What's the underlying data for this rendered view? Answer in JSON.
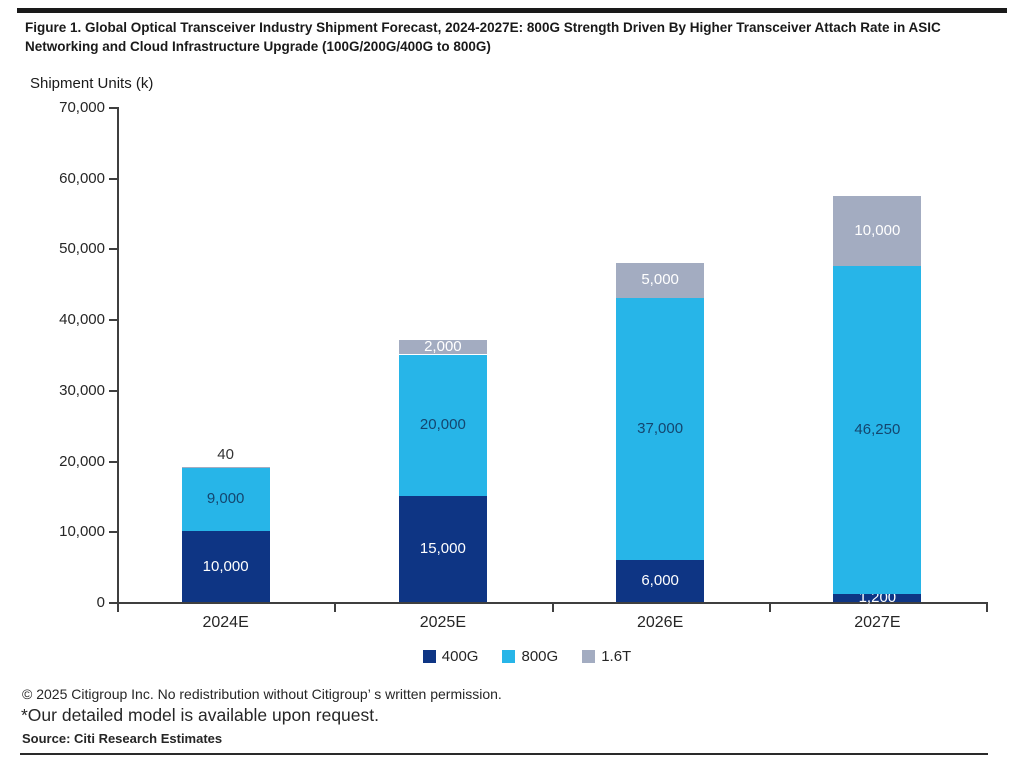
{
  "figure": {
    "title": "Figure 1. Global Optical Transceiver Industry Shipment Forecast, 2024-2027E: 800G Strength Driven By Higher Transceiver Attach Rate in ASIC Networking and Cloud Infrastructure Upgrade (100G/200G/400G to 800G)"
  },
  "chart_data": {
    "type": "bar",
    "stacked": true,
    "title": "Figure 1. Global Optical Transceiver Industry Shipment Forecast, 2024-2027E: 800G Strength Driven By Higher Transceiver Attach Rate in ASIC Networking and Cloud Infrastructure Upgrade (100G/200G/400G to 800G)",
    "ylabel": "Shipment Units (k)",
    "ylim": [
      0,
      70000
    ],
    "ytick_step": 10000,
    "ytick_labels": [
      "0",
      "10,000",
      "20,000",
      "30,000",
      "40,000",
      "50,000",
      "60,000",
      "70,000"
    ],
    "grid": false,
    "legend_position": "bottom",
    "categories": [
      "2024E",
      "2025E",
      "2026E",
      "2027E"
    ],
    "series": [
      {
        "name": "400G",
        "color": "#0E3584",
        "label_color": "#FFFFFF",
        "values": [
          10000,
          15000,
          6000,
          1200
        ],
        "labels": [
          "10,000",
          "15,000",
          "6,000",
          "1,200"
        ],
        "label_pos": [
          "in",
          "in",
          "in",
          "in"
        ]
      },
      {
        "name": "800G",
        "color": "#27B5E8",
        "label_color": "#14466F",
        "values": [
          9000,
          20000,
          37000,
          46250
        ],
        "labels": [
          "9,000",
          "20,000",
          "37,000",
          "46,250"
        ],
        "label_pos": [
          "in",
          "in",
          "in",
          "in"
        ]
      },
      {
        "name": "1.6T",
        "color": "#A3ACC1",
        "label_color": "#FFFFFF",
        "values": [
          40,
          2000,
          5000,
          10000
        ],
        "labels": [
          "40",
          "2,000",
          "5,000",
          "10,000"
        ],
        "label_pos": [
          "above",
          "in",
          "in",
          "in"
        ]
      }
    ],
    "totals": [
      19040,
      37000,
      48000,
      57450
    ],
    "above_label_color": "#333333",
    "axis_color": "#3F3F3F"
  },
  "footer": {
    "copyright": "© 2025 Citigroup Inc. No redistribution without Citigroup’ s written permission.",
    "note": "*Our detailed model is available upon request.",
    "source": "Source: Citi Research Estimates"
  }
}
